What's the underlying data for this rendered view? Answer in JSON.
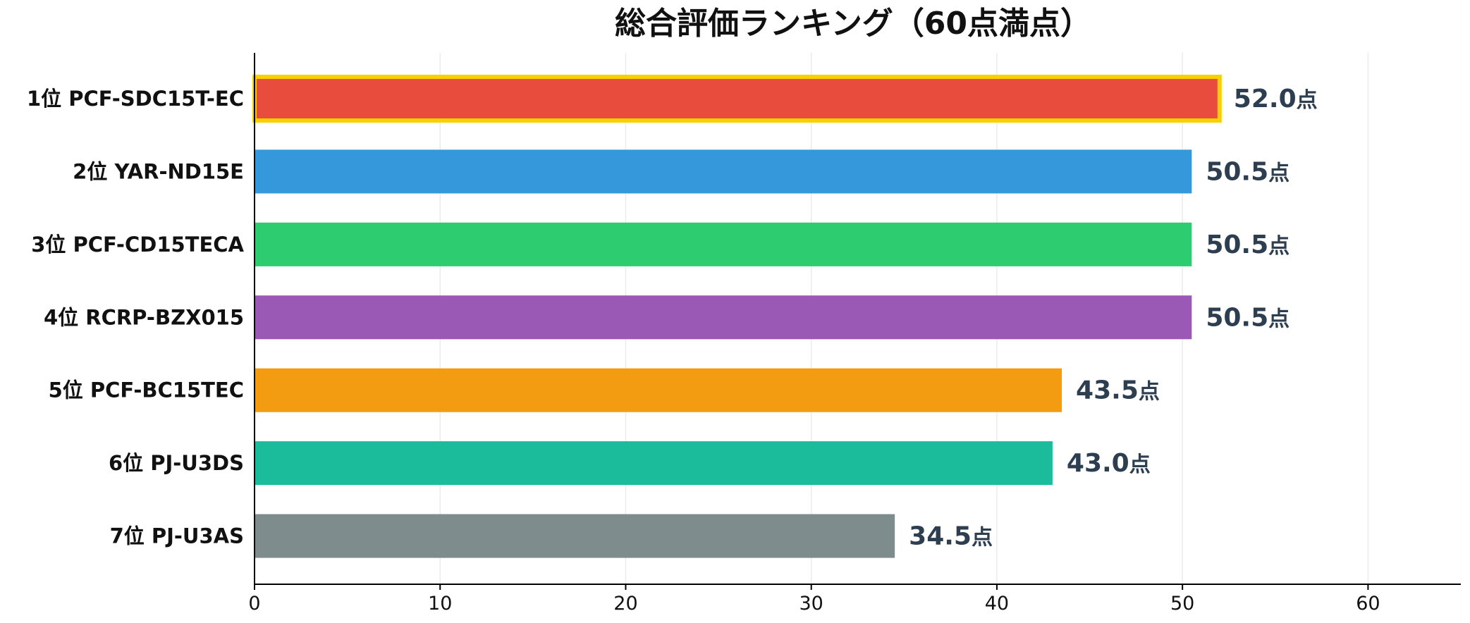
{
  "chart_data": {
    "type": "bar",
    "orientation": "horizontal",
    "title": "総合評価ランキング（60点満点）",
    "categories": [
      "1位 PCF-SDC15T-EC",
      "2位 YAR-ND15E",
      "3位 PCF-CD15TECA",
      "4位 RCRP-BZX015",
      "5位 PCF-BC15TEC",
      "6位 PJ-U3DS",
      "7位 PJ-U3AS"
    ],
    "values": [
      52.0,
      50.5,
      50.5,
      50.5,
      43.5,
      43.0,
      34.5
    ],
    "value_labels": [
      "52.0点",
      "50.5点",
      "50.5点",
      "50.5点",
      "43.5点",
      "43.0点",
      "34.5点"
    ],
    "colors": [
      "#e74c3c",
      "#3498db",
      "#2ecc71",
      "#9b59b6",
      "#f39c12",
      "#1abc9c",
      "#7f8c8d"
    ],
    "highlight": {
      "index": 0,
      "color": "#f7d000"
    },
    "xlim": [
      0,
      65
    ],
    "xticks": [
      0,
      10,
      20,
      30,
      40,
      50,
      60
    ],
    "grid": true
  }
}
